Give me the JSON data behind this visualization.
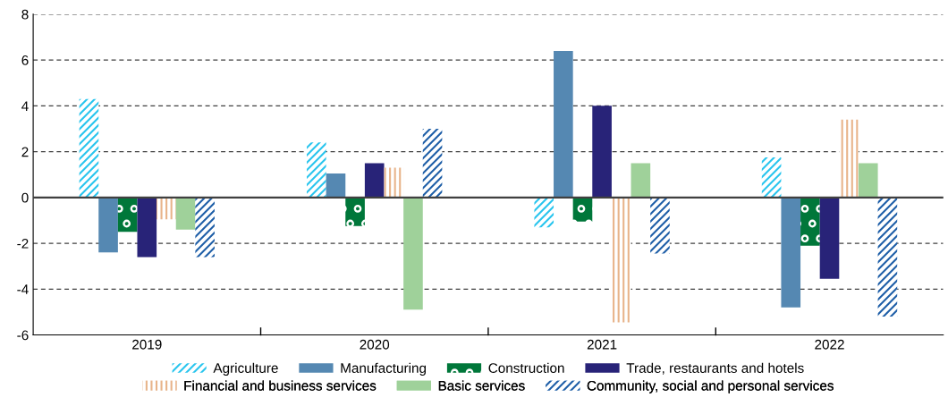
{
  "chart_data": {
    "type": "bar",
    "categories": [
      "2019",
      "2020",
      "2021",
      "2022"
    ],
    "series": [
      {
        "name": "Agriculture",
        "color": "#29c5ee",
        "values": [
          4.3,
          2.4,
          -1.3,
          1.75
        ]
      },
      {
        "name": "Manufacturing",
        "color": "#5588b2",
        "values": [
          -2.4,
          1.05,
          6.4,
          -4.8
        ]
      },
      {
        "name": "Construction",
        "color": "#00773a",
        "values": [
          -1.5,
          -1.25,
          -1.05,
          -2.1
        ]
      },
      {
        "name": "Trade, restaurants and hotels",
        "color": "#282378",
        "values": [
          -2.6,
          1.5,
          4.0,
          -3.55
        ]
      },
      {
        "name": "Financial and business services",
        "color": "#e8b48a",
        "values": [
          -0.95,
          1.3,
          -5.45,
          3.4
        ]
      },
      {
        "name": "Basic services",
        "color": "#9fd19a",
        "values": [
          -1.4,
          -4.9,
          1.5,
          1.5
        ]
      },
      {
        "name": "Community, social and personal services",
        "color": "#1f5fa8",
        "values": [
          -2.6,
          3.0,
          -2.45,
          -5.2
        ]
      }
    ],
    "ylim": [
      -6,
      8
    ],
    "yticks": [
      -6,
      -4,
      -2,
      0,
      2,
      4,
      6,
      8
    ],
    "ref_lines": [
      {
        "axis": "y",
        "value": 0,
        "color": "#404040",
        "line_style": "solid"
      }
    ],
    "grid": "y",
    "legend": "bottom"
  }
}
